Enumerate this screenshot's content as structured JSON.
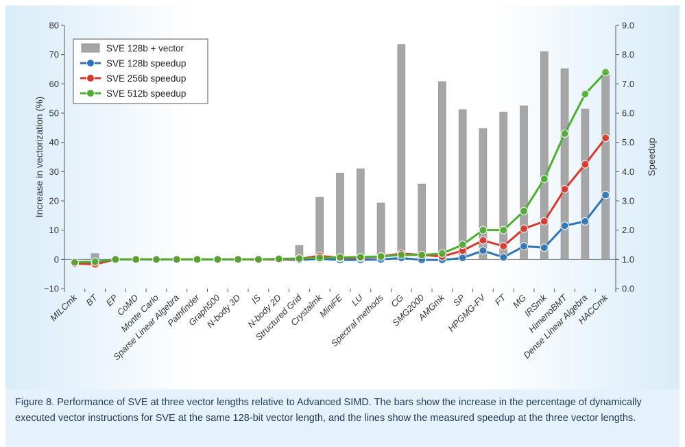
{
  "chart_data": {
    "type": "bar+line",
    "categories": [
      "MILCmk",
      "BT",
      "EP",
      "CoMD",
      "Monte Carlo",
      "Sparse Linear Algebra",
      "Pathfinder",
      "Graph500",
      "N-body 3D",
      "IS",
      "N-body 2D",
      "Structured Grid",
      "Crystalmk",
      "MiniFE",
      "LU",
      "Spectral methods",
      "CG",
      "SMG2000",
      "AMGmk",
      "SP",
      "HPGMG-FV",
      "FT",
      "MG",
      "IRSmk",
      "HimenoBMT",
      "Dense Linear Algebra",
      "HACCmk"
    ],
    "bars": {
      "name": "SVE 128b + vector",
      "axis": "left",
      "color": "#a6a6a6",
      "values": [
        0,
        2,
        0,
        0,
        0,
        0,
        0,
        0,
        0,
        0,
        0,
        4.8,
        21.3,
        29.5,
        31,
        19.3,
        73.5,
        25.8,
        60.8,
        51.2,
        44.7,
        50.4,
        52.5,
        71,
        65.2,
        51.4,
        63.8
      ]
    },
    "series": [
      {
        "name": "SVE 128b speedup",
        "axis": "right",
        "color": "#2e75b6",
        "values": [
          0.83,
          0.9,
          1.0,
          1.0,
          1.0,
          1.0,
          1.0,
          1.0,
          1.0,
          1.0,
          1.0,
          0.98,
          1.02,
          0.98,
          0.98,
          1.0,
          1.05,
          0.98,
          0.98,
          1.05,
          1.3,
          1.07,
          1.45,
          1.4,
          2.15,
          2.3,
          3.2
        ]
      },
      {
        "name": "SVE 256b speedup",
        "axis": "right",
        "color": "#d9372b",
        "values": [
          0.86,
          0.83,
          1.0,
          1.0,
          1.0,
          1.0,
          1.0,
          1.0,
          1.0,
          1.0,
          1.0,
          1.02,
          1.12,
          1.05,
          1.05,
          1.1,
          1.2,
          1.15,
          1.1,
          1.3,
          1.65,
          1.45,
          2.05,
          2.3,
          3.4,
          4.25,
          5.15
        ]
      },
      {
        "name": "SVE 512b speedup",
        "axis": "right",
        "color": "#4caf32",
        "values": [
          0.9,
          0.92,
          1.0,
          1.0,
          1.0,
          1.0,
          1.0,
          1.0,
          1.0,
          1.0,
          1.02,
          1.03,
          1.05,
          1.07,
          1.08,
          1.1,
          1.15,
          1.15,
          1.2,
          1.5,
          2.0,
          2.0,
          2.65,
          3.75,
          5.3,
          6.65,
          7.4
        ]
      }
    ],
    "left_axis": {
      "label": "Increase in vectorization (%)",
      "range": [
        -10,
        80
      ],
      "ticks": [
        "−10",
        "0",
        "10",
        "20",
        "30",
        "40",
        "50",
        "60",
        "70",
        "80"
      ]
    },
    "right_axis": {
      "label": "Speedup",
      "range": [
        0,
        9
      ],
      "ticks": [
        "0.0",
        "1.0",
        "2.0",
        "3.0",
        "4.0",
        "5.0",
        "6.0",
        "7.0",
        "8.0",
        "9.0"
      ]
    },
    "legend_position": "top-left",
    "grid": false
  },
  "caption": "Figure 8. Performance of SVE at three vector lengths relative to Advanced SIMD. The bars show the increase in the percentage of dynamically executed vector instructions for SVE at the same 128-bit vector length, and the lines show the measured speedup at the three vector lengths."
}
